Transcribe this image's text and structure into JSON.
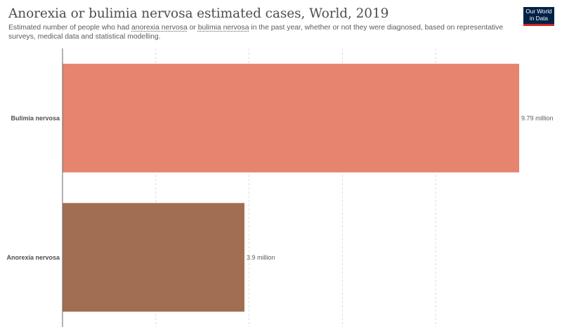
{
  "header": {
    "title": "Anorexia or bulimia nervosa estimated cases, World, 2019",
    "subtitle_parts": {
      "before": "Estimated number of people who had ",
      "term1": "anorexia nervosa",
      "middle": " or ",
      "term2": "bulimia nervosa",
      "after": " in the past year, whether or not they were diagnosed, based on representative surveys, medical data and statistical modelling."
    }
  },
  "logo": {
    "line1": "Our World",
    "line2": "in Data",
    "bg_color": "#002147",
    "accent_color": "#ce261e"
  },
  "chart_data": {
    "type": "bar",
    "orientation": "horizontal",
    "categories": [
      "Bulimia nervosa",
      "Anorexia nervosa"
    ],
    "values": [
      9790000,
      3900000
    ],
    "value_labels": [
      "9.79 million",
      "3.9 million"
    ],
    "colors": [
      "#e6846f",
      "#a26e52"
    ],
    "xlim": [
      0,
      10000000
    ],
    "gridline_values": [
      2000000,
      4000000,
      6000000,
      8000000
    ],
    "grid": true,
    "legend": "none"
  }
}
